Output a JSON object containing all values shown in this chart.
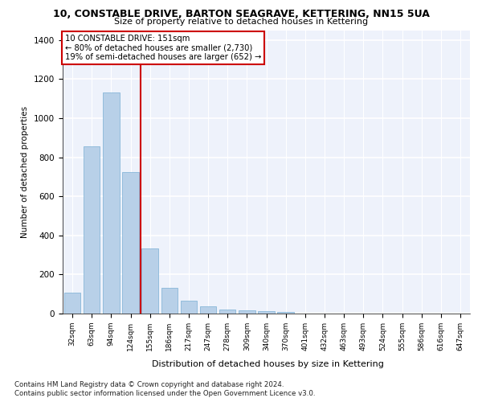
{
  "title": "10, CONSTABLE DRIVE, BARTON SEAGRAVE, KETTERING, NN15 5UA",
  "subtitle": "Size of property relative to detached houses in Kettering",
  "xlabel": "Distribution of detached houses by size in Kettering",
  "ylabel": "Number of detached properties",
  "categories": [
    "32sqm",
    "63sqm",
    "94sqm",
    "124sqm",
    "155sqm",
    "186sqm",
    "217sqm",
    "247sqm",
    "278sqm",
    "309sqm",
    "340sqm",
    "370sqm",
    "401sqm",
    "432sqm",
    "463sqm",
    "493sqm",
    "524sqm",
    "555sqm",
    "586sqm",
    "616sqm",
    "647sqm"
  ],
  "values": [
    105,
    855,
    1130,
    725,
    335,
    130,
    65,
    35,
    20,
    18,
    12,
    10,
    0,
    0,
    0,
    0,
    0,
    0,
    0,
    0,
    0
  ],
  "bar_color": "#b8d0e8",
  "bar_edge_color": "#7aafd4",
  "property_line_color": "#cc0000",
  "annotation_text": "10 CONSTABLE DRIVE: 151sqm\n← 80% of detached houses are smaller (2,730)\n19% of semi-detached houses are larger (652) →",
  "annotation_box_color": "#cc0000",
  "background_color": "#eef2fb",
  "grid_color": "#ffffff",
  "ylim": [
    0,
    1450
  ],
  "yticks": [
    0,
    200,
    400,
    600,
    800,
    1000,
    1200,
    1400
  ],
  "footer_line1": "Contains HM Land Registry data © Crown copyright and database right 2024.",
  "footer_line2": "Contains public sector information licensed under the Open Government Licence v3.0."
}
